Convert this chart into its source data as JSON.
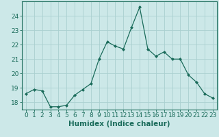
{
  "xlabel": "Humidex (Indice chaleur)",
  "ylabel": "",
  "x": [
    0,
    1,
    2,
    3,
    4,
    5,
    6,
    7,
    8,
    9,
    10,
    11,
    12,
    13,
    14,
    15,
    16,
    17,
    18,
    19,
    20,
    21,
    22,
    23
  ],
  "y": [
    18.6,
    18.9,
    18.8,
    17.7,
    17.7,
    17.8,
    18.5,
    18.9,
    19.3,
    21.0,
    22.2,
    21.9,
    21.7,
    23.2,
    24.6,
    21.7,
    21.2,
    21.5,
    21.0,
    21.0,
    19.9,
    19.4,
    18.6,
    18.3
  ],
  "line_color": "#1a6b5a",
  "marker": "D",
  "marker_size": 2.0,
  "bg_color": "#cce8e8",
  "grid_color": "#aad0d0",
  "ylim": [
    17.5,
    25.0
  ],
  "yticks": [
    18,
    19,
    20,
    21,
    22,
    23,
    24
  ],
  "tick_fontsize": 6.5,
  "label_fontsize": 7.5
}
